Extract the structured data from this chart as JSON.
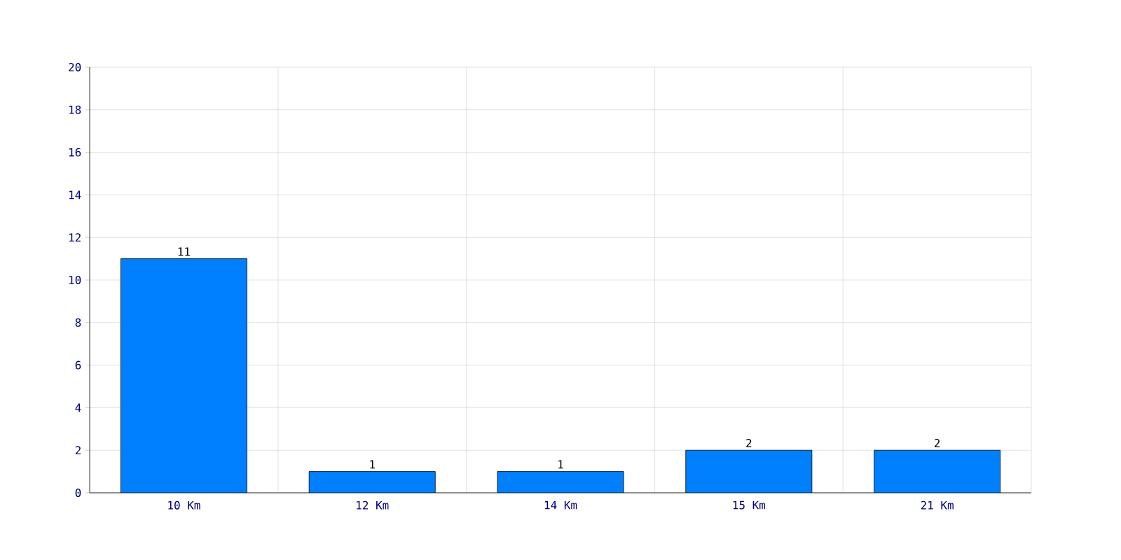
{
  "chart_data": {
    "type": "bar",
    "categories": [
      "10 Km",
      "12 Km",
      "14 Km",
      "15 Km",
      "21 Km"
    ],
    "values": [
      11,
      1,
      1,
      2,
      2
    ],
    "color": "#0080ff",
    "ylim": [
      0,
      20
    ],
    "yticks": [
      0,
      2,
      4,
      6,
      8,
      10,
      12,
      14,
      16,
      18,
      20
    ],
    "grid": true,
    "data_labels": true
  }
}
